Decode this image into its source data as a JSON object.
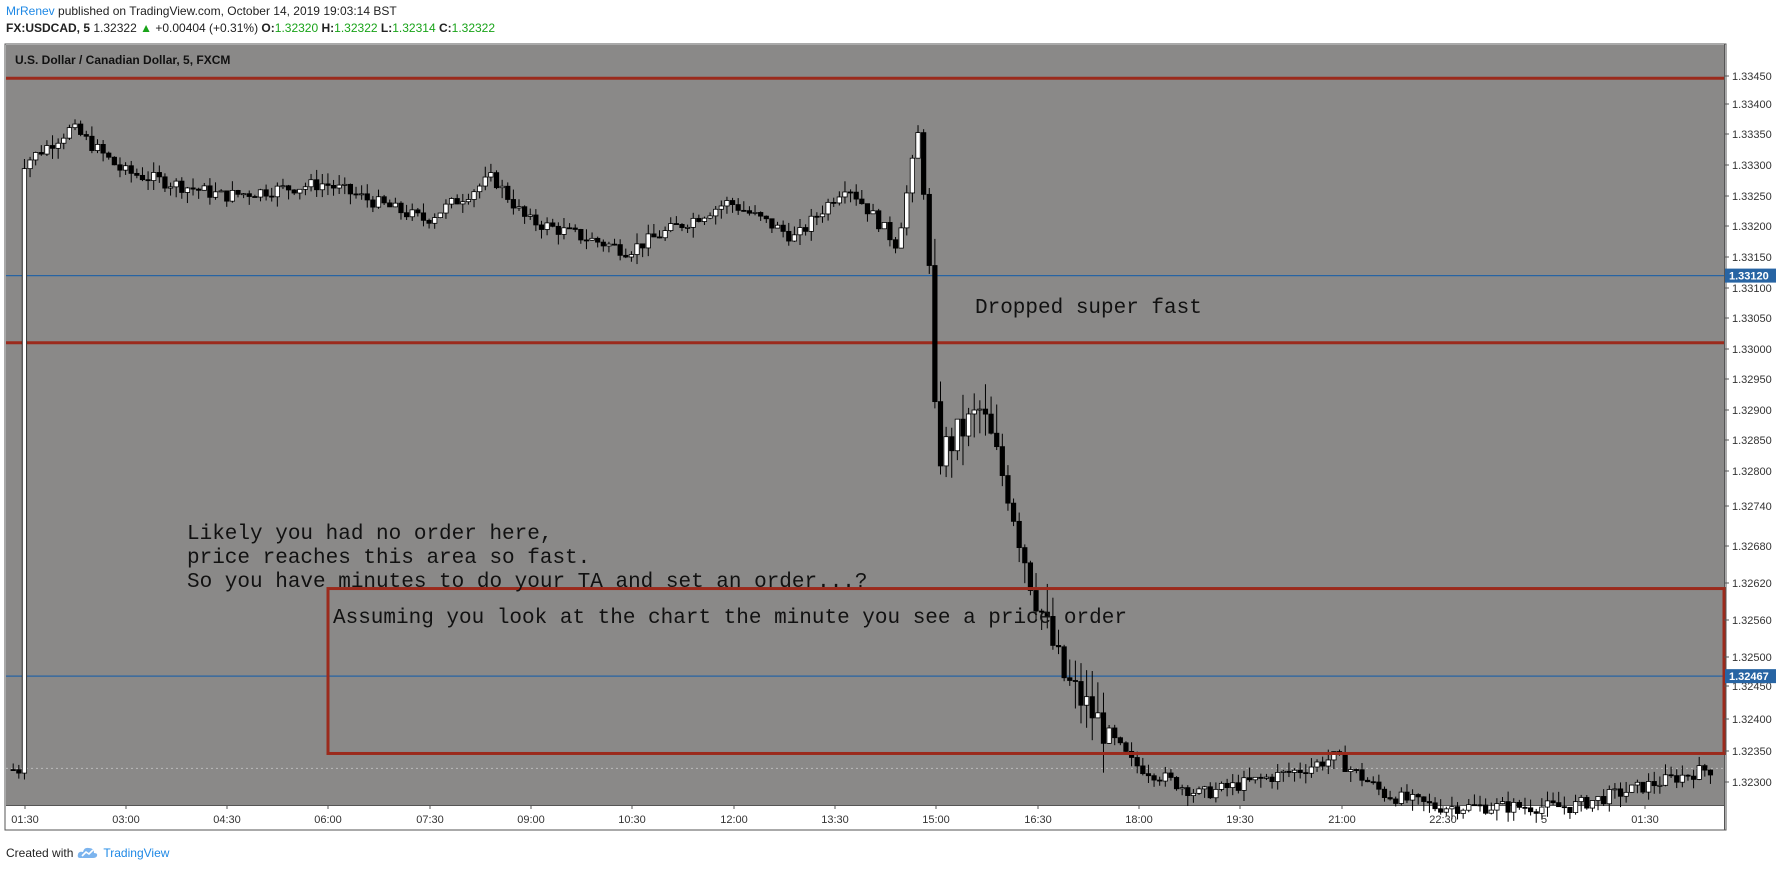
{
  "header": {
    "author": "MrRenev",
    "published": "published on TradingView.com, October 14, 2019 19:03:14 BST"
  },
  "ohlc": {
    "symbol": "FX:USDCAD, 5",
    "last": "1.32322",
    "change": "+0.00404 (+0.31%)",
    "open_label": "O:",
    "open": "1.32320",
    "high_label": "H:",
    "high": "1.32322",
    "low_label": "L:",
    "low": "1.32314",
    "close_label": "C:",
    "close": "1.32322"
  },
  "footer": {
    "created_with": "Created with",
    "brand": "TradingView"
  },
  "colors": {
    "plot_bg": "#8a8988",
    "red_line": "#9b2a1c",
    "blue_line": "#2764a3",
    "candle": "#000000",
    "bull_fill": "#ffffff",
    "label_blue": "#2764a3"
  },
  "chart_data": {
    "type": "candlestick",
    "title": "U.S. Dollar / Canadian Dollar, 5, FXCM",
    "x_ticks": [
      "01:30",
      "03:00",
      "04:30",
      "06:00",
      "07:30",
      "09:00",
      "10:30",
      "12:00",
      "13:30",
      "15:00",
      "16:30",
      "18:00",
      "19:30",
      "21:00",
      "22:30",
      "5",
      "01:30"
    ],
    "y_ticks": [
      "1.33450",
      "1.33400",
      "1.33350",
      "1.33300",
      "1.33250",
      "1.33200",
      "1.33150",
      "1.33100",
      "1.33050",
      "1.33000",
      "1.32950",
      "1.32900",
      "1.32850",
      "1.32800",
      "1.32740",
      "1.32680",
      "1.32620",
      "1.32560",
      "1.32500",
      "1.32450",
      "1.32400",
      "1.32350",
      "1.32300"
    ],
    "ylim": [
      1.3225,
      1.3349
    ],
    "y_scale": "piecewise per printed ticks",
    "horizontal_lines": [
      {
        "price": 1.33446,
        "color": "red"
      },
      {
        "price": 1.3312,
        "color": "blue",
        "label": "1.33120"
      },
      {
        "price": 1.3301,
        "color": "red"
      },
      {
        "price": 1.32467,
        "color": "blue",
        "label": "1.32467"
      }
    ],
    "rectangle": {
      "x_start": "06:00",
      "x_end": "right edge",
      "price_top": 1.32611,
      "price_bottom": 1.32346,
      "color": "red"
    },
    "annotations": [
      "Dropped super fast",
      "Likely you had no order here,",
      "price reaches this area so fast.",
      "So you have minutes to do your TA and set an order...?",
      "Assuming you look at the chart the minute you see a price order"
    ],
    "price_path": [
      [
        "01:30",
        1.333
      ],
      [
        "02:15",
        1.3336
      ],
      [
        "03:00",
        1.3329
      ],
      [
        "04:30",
        1.3325
      ],
      [
        "06:00",
        1.3327
      ],
      [
        "07:30",
        1.3321
      ],
      [
        "08:30",
        1.3328
      ],
      [
        "09:00",
        1.3321
      ],
      [
        "10:30",
        1.3316
      ],
      [
        "12:00",
        1.3324
      ],
      [
        "13:00",
        1.3318
      ],
      [
        "13:45",
        1.3327
      ],
      [
        "14:30",
        1.3317
      ],
      [
        "14:50",
        1.3336
      ],
      [
        "15:00",
        1.331
      ],
      [
        "15:05",
        1.3282
      ],
      [
        "15:45",
        1.329
      ],
      [
        "16:10",
        1.3276
      ],
      [
        "16:30",
        1.3262
      ],
      [
        "17:00",
        1.3246
      ],
      [
        "18:00",
        1.3233
      ],
      [
        "19:00",
        1.3228
      ],
      [
        "20:30",
        1.3232
      ],
      [
        "21:00",
        1.3234
      ],
      [
        "21:45",
        1.3228
      ],
      [
        "22:30",
        1.3226
      ],
      [
        "00:30",
        1.3226
      ],
      [
        "01:30",
        1.3229
      ],
      [
        "02:30",
        1.3232
      ]
    ]
  }
}
